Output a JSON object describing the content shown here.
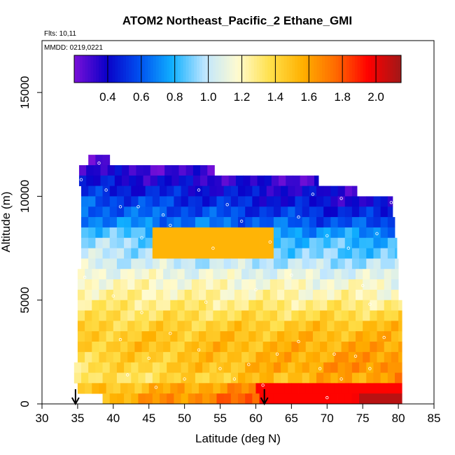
{
  "chart_data": {
    "type": "heatmap",
    "title": "ATOM2 Northeast_Pacific_2 Ethane_GMI",
    "flights_label": "Flts: 10,11",
    "dates_label": "MMDD: 0219,0221",
    "xlabel": "Latitude (deg N)",
    "ylabel": "Altitude (m)",
    "xlim": [
      30,
      85
    ],
    "ylim": [
      0,
      17500
    ],
    "xticks": [
      "30",
      "35",
      "40",
      "45",
      "50",
      "55",
      "60",
      "65",
      "70",
      "75",
      "80",
      "85"
    ],
    "yticks": [
      "0",
      "5000",
      "10000",
      "15000"
    ],
    "colorbar": {
      "min": 0.2,
      "max": 2.15,
      "ticks": [
        "0.4",
        "0.6",
        "0.8",
        "1.0",
        "1.2",
        "1.4",
        "1.6",
        "1.8",
        "2.0"
      ],
      "stops": [
        "#7a10d8",
        "#0a00c8",
        "#0050f0",
        "#10b0ff",
        "#bfe6ff",
        "#fffbd0",
        "#ffe04a",
        "#ffb000",
        "#ff6a00",
        "#ff0000",
        "#a01818"
      ]
    },
    "grid": false,
    "arrows_at_latitude": [
      34.7,
      61.2
    ],
    "bands": [
      {
        "alt": [
          11500,
          12000
        ],
        "x": [
          36.5,
          39.5
        ],
        "v": [
          0.3,
          0.25
        ]
      },
      {
        "alt": [
          11000,
          11500
        ],
        "x": [
          35.2,
          54.2
        ],
        "v": [
          0.35,
          0.28
        ]
      },
      {
        "alt": [
          10500,
          11000
        ],
        "x": [
          35.2,
          68.8
        ],
        "v": [
          0.42,
          0.3
        ]
      },
      {
        "alt": [
          10000,
          10500
        ],
        "x": [
          35.5,
          74.2
        ],
        "v": [
          0.5,
          0.35
        ]
      },
      {
        "alt": [
          9500,
          10000
        ],
        "x": [
          35.5,
          79.2
        ],
        "v": [
          0.6,
          0.35
        ]
      },
      {
        "alt": [
          9000,
          9500
        ],
        "x": [
          35.5,
          79.2
        ],
        "v": [
          0.65,
          0.45
        ]
      },
      {
        "alt": [
          8500,
          9000
        ],
        "x": [
          35.5,
          79.5
        ],
        "v": [
          0.72,
          0.55
        ]
      },
      {
        "alt": [
          8000,
          8500
        ],
        "x": [
          35.5,
          79.5
        ],
        "v": [
          0.85,
          0.7
        ]
      },
      {
        "alt": [
          7500,
          8000
        ],
        "x": [
          35.5,
          79.8
        ],
        "v": [
          0.95,
          0.8
        ]
      },
      {
        "alt": [
          7000,
          7500
        ],
        "x": [
          35.5,
          79.8
        ],
        "v": [
          1.0,
          0.85
        ]
      },
      {
        "alt": [
          6500,
          7000
        ],
        "x": [
          35.5,
          80.0
        ],
        "v": [
          1.05,
          0.95
        ]
      },
      {
        "alt": [
          6000,
          6500
        ],
        "x": [
          35.0,
          80.0
        ],
        "v": [
          1.15,
          1.05
        ]
      },
      {
        "alt": [
          5500,
          6000
        ],
        "x": [
          35.0,
          80.0
        ],
        "v": [
          1.2,
          1.15
        ]
      },
      {
        "alt": [
          5000,
          5500
        ],
        "x": [
          35.0,
          80.0
        ],
        "v": [
          1.25,
          1.2
        ]
      },
      {
        "alt": [
          4500,
          5000
        ],
        "x": [
          35.0,
          80.5
        ],
        "v": [
          1.3,
          1.3
        ]
      },
      {
        "alt": [
          4000,
          4500
        ],
        "x": [
          35.0,
          80.5
        ],
        "v": [
          1.35,
          1.4
        ]
      },
      {
        "alt": [
          3500,
          4000
        ],
        "x": [
          35.0,
          80.5
        ],
        "v": [
          1.4,
          1.5
        ]
      },
      {
        "alt": [
          3000,
          3500
        ],
        "x": [
          35.0,
          80.5
        ],
        "v": [
          1.45,
          1.55
        ]
      },
      {
        "alt": [
          2500,
          3000
        ],
        "x": [
          35.0,
          80.5
        ],
        "v": [
          1.45,
          1.6
        ]
      },
      {
        "alt": [
          2000,
          2500
        ],
        "x": [
          35.0,
          80.5
        ],
        "v": [
          1.4,
          1.65
        ]
      },
      {
        "alt": [
          1500,
          2000
        ],
        "x": [
          34.5,
          80.5
        ],
        "v": [
          1.35,
          1.7
        ]
      },
      {
        "alt": [
          1000,
          1500
        ],
        "x": [
          34.5,
          80.5
        ],
        "v": [
          1.3,
          1.65
        ]
      },
      {
        "alt": [
          500,
          1000
        ],
        "x": [
          35.0,
          80.5
        ],
        "v": [
          1.45,
          1.85
        ]
      },
      {
        "alt": [
          0,
          500
        ],
        "x": [
          38.5,
          80.5
        ],
        "v": [
          1.55,
          2.0
        ]
      }
    ],
    "hot_spots": [
      {
        "alt": [
          7000,
          8500
        ],
        "x": [
          45,
          62
        ],
        "v": 1.55
      },
      {
        "alt": [
          0,
          1000
        ],
        "x": [
          60,
          80.5
        ],
        "v": 1.95
      },
      {
        "alt": [
          0,
          500
        ],
        "x": [
          74,
          80.5
        ],
        "v": 2.1
      }
    ],
    "samples": [
      [
        36.2,
        11800
      ],
      [
        38,
        11600
      ],
      [
        35.5,
        10800
      ],
      [
        39,
        10300
      ],
      [
        41,
        9500
      ],
      [
        43.5,
        9500
      ],
      [
        47,
        9100
      ],
      [
        52,
        10300
      ],
      [
        56,
        9600
      ],
      [
        44,
        8000
      ],
      [
        48,
        8600
      ],
      [
        54,
        7500
      ],
      [
        58,
        8800
      ],
      [
        62,
        7800
      ],
      [
        66,
        9000
      ],
      [
        70,
        8100
      ],
      [
        73,
        7500
      ],
      [
        77,
        8200
      ],
      [
        79,
        9700
      ],
      [
        72,
        9900
      ],
      [
        68,
        10100
      ],
      [
        36,
        6100
      ],
      [
        40,
        5200
      ],
      [
        44,
        4400
      ],
      [
        48,
        3400
      ],
      [
        52,
        2600
      ],
      [
        55,
        1700
      ],
      [
        57,
        1200
      ],
      [
        59,
        1900
      ],
      [
        61,
        900
      ],
      [
        63,
        2400
      ],
      [
        66,
        3000
      ],
      [
        69,
        1700
      ],
      [
        70,
        300
      ],
      [
        71,
        2400
      ],
      [
        72,
        1200
      ],
      [
        74,
        2300
      ],
      [
        75,
        5700
      ],
      [
        76,
        4800
      ],
      [
        76,
        1700
      ],
      [
        78,
        3200
      ],
      [
        42,
        1400
      ],
      [
        45,
        2200
      ],
      [
        46,
        800
      ],
      [
        50,
        1200
      ],
      [
        53,
        4900
      ],
      [
        41,
        3100
      ],
      [
        60,
        5500
      ],
      [
        65,
        6200
      ]
    ]
  }
}
